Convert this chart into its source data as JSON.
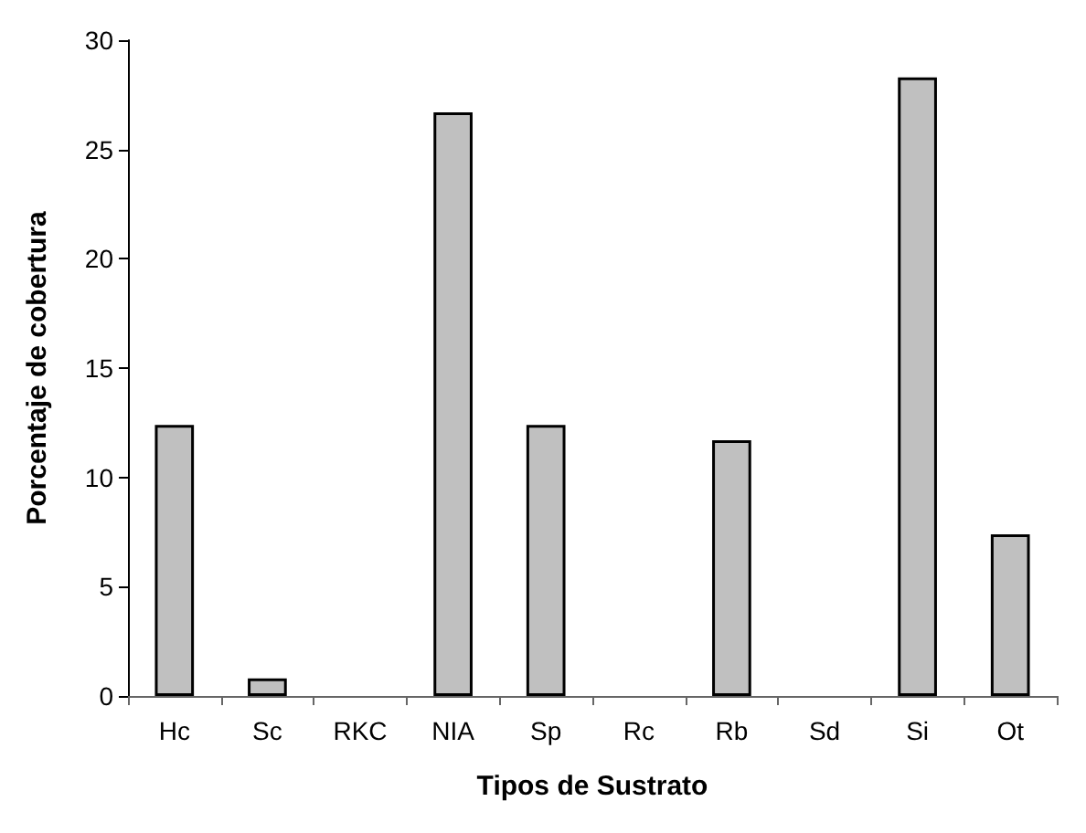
{
  "chart_data": {
    "type": "bar",
    "xlabel": "Tipos de Sustrato",
    "ylabel": "Porcentaje de cobertura",
    "categories": [
      "Hc",
      "Sc",
      "RKC",
      "NIA",
      "Sp",
      "Rc",
      "Rb",
      "Sd",
      "Si",
      "Ot"
    ],
    "values": [
      12.4,
      0.8,
      0,
      26.7,
      12.4,
      0,
      11.7,
      0,
      28.3,
      7.4
    ],
    "color": "#c0c0c0",
    "ylim": [
      0,
      30
    ],
    "yticks": [
      0,
      5,
      10,
      15,
      20,
      25,
      30
    ],
    "grid": false
  }
}
